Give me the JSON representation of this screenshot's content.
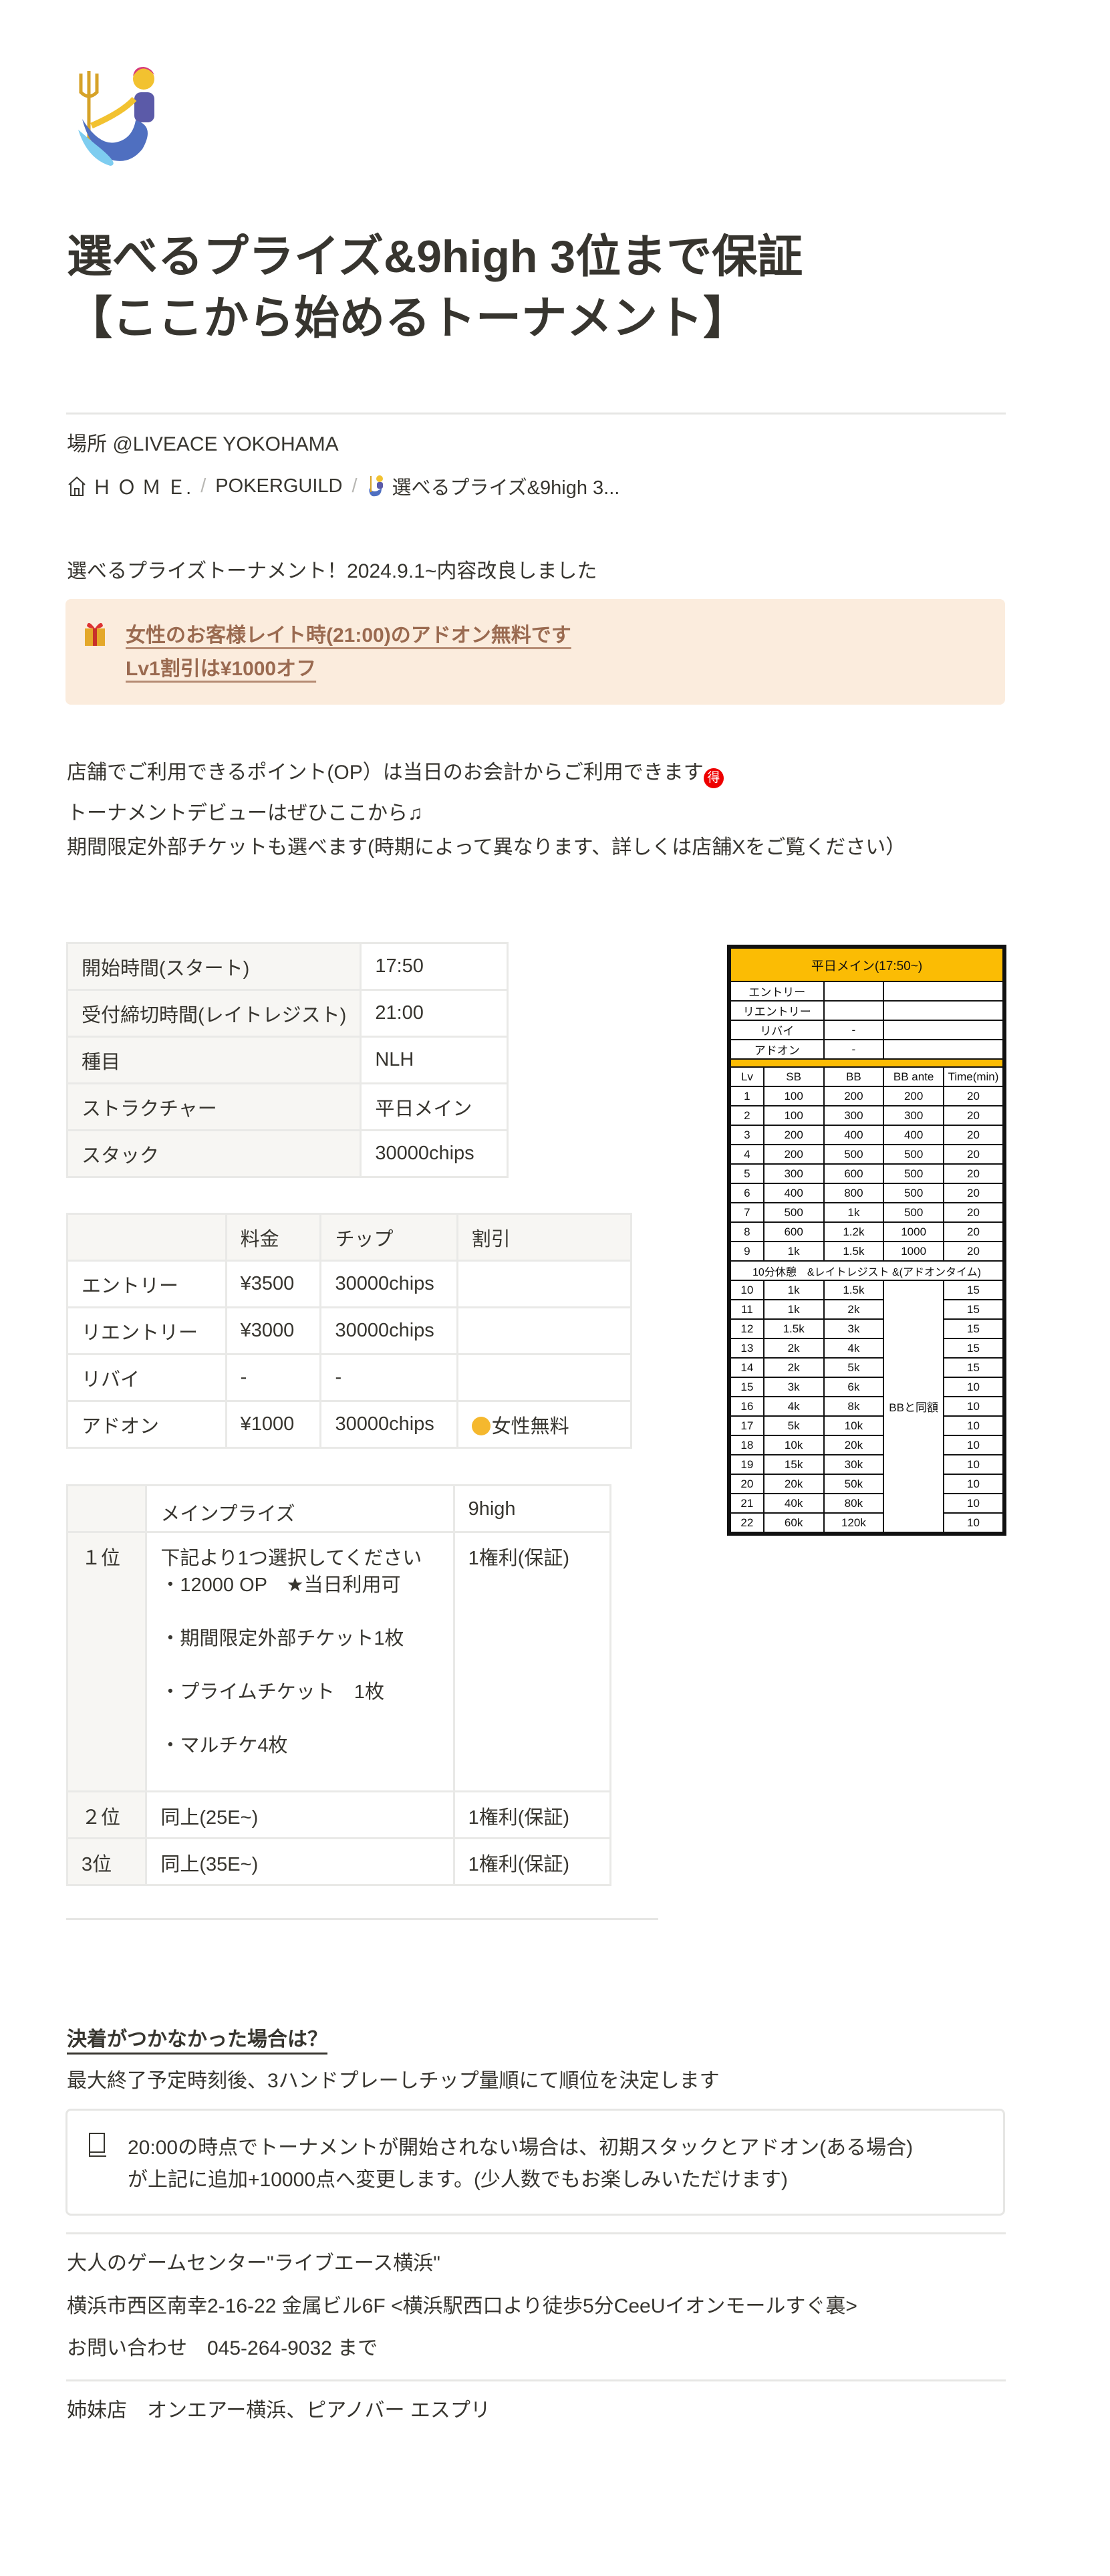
{
  "page": {
    "icon": "merperson-emoji",
    "title_line1": "選べるプライズ&9high 3位まで保証",
    "title_line2": "【ここから始めるトーナメント】",
    "location": "場所 @LIVEACE YOKOHAMA"
  },
  "breadcrumb": {
    "items": [
      {
        "icon": "home-icon",
        "label": "Ｈ Ｏ Ｍ Ｅ."
      },
      {
        "label": "POKERGUILD"
      },
      {
        "icon": "merperson-emoji",
        "label": "選べるプライズ&9high 3..."
      }
    ],
    "separator": "/"
  },
  "intro": "選べるプライズトーナメント！2024.9.1~内容改良しました",
  "callout_orange": {
    "icon": "gift-emoji",
    "line1": "女性のお客様レイト時(21:00)のアドオン無料です",
    "line2": "Lv1割引は¥1000オフ"
  },
  "notes": {
    "points": "店舗でご利用できるポイント(OP）は当日のお会計からご利用できます",
    "points_emoji": "得",
    "debut": "トーナメントデビューはぜひここから",
    "debut_emoji": "music-note-emoji",
    "tickets": "期間限定外部チケットも選べます(時期によって異なります、詳しくは店舗Xをご覧ください）"
  },
  "info_table": [
    [
      "開始時間(スタート)",
      "17:50"
    ],
    [
      "受付締切時間(レイトレジスト)",
      "21:00"
    ],
    [
      "種目",
      "NLH"
    ],
    [
      "ストラクチャー",
      "平日メイン"
    ],
    [
      "スタック",
      "30000chips"
    ]
  ],
  "fee_table": {
    "headers": [
      "",
      "料金",
      "チップ",
      "割引"
    ],
    "rows": [
      [
        "エントリー",
        "¥3500",
        "30000chips",
        ""
      ],
      [
        "リエントリー",
        "¥3000",
        "30000chips",
        ""
      ],
      [
        "リバイ",
        "-",
        "-",
        ""
      ],
      [
        "アドオン",
        "¥1000",
        "30000chips",
        "女性無料"
      ]
    ],
    "discount_emoji": "woman-emoji"
  },
  "prize_table": {
    "headers": [
      "",
      "メインプライズ",
      "9high"
    ],
    "rows": [
      [
        "１位",
        "下記より1つ選択してください\n・12000 OP　★当日利用可\n\n・期間限定外部チケット1枚\n\n・プライムチケット　1枚\n\n・マルチケ4枚",
        "1権利(保証)"
      ],
      [
        "２位",
        "同上(25E~)",
        "1権利(保証)"
      ],
      [
        "3位",
        "同上(35E~)",
        "1権利(保証)"
      ]
    ]
  },
  "structure": {
    "title": "平日メイン(17:50~)",
    "accent": "#fbbc04",
    "fees": [
      [
        "エントリー",
        "",
        ""
      ],
      [
        "リエントリー",
        "",
        ""
      ],
      [
        "リバイ",
        "-",
        ""
      ],
      [
        "アドオン",
        "-",
        ""
      ]
    ],
    "headers": [
      "Lv",
      "SB",
      "BB",
      "BB ante",
      "Time(min)"
    ],
    "levels_a": [
      [
        "1",
        "100",
        "200",
        "200",
        "20"
      ],
      [
        "2",
        "100",
        "300",
        "300",
        "20"
      ],
      [
        "3",
        "200",
        "400",
        "400",
        "20"
      ],
      [
        "4",
        "200",
        "500",
        "500",
        "20"
      ],
      [
        "5",
        "300",
        "600",
        "500",
        "20"
      ],
      [
        "6",
        "400",
        "800",
        "500",
        "20"
      ],
      [
        "7",
        "500",
        "1k",
        "500",
        "20"
      ],
      [
        "8",
        "600",
        "1.2k",
        "1000",
        "20"
      ],
      [
        "9",
        "1k",
        "1.5k",
        "1000",
        "20"
      ]
    ],
    "break_label": "10分休憩　&レイトレジスト &(アドオンタイム)",
    "levels_b": [
      [
        "10",
        "1k",
        "1.5k",
        "15"
      ],
      [
        "11",
        "1k",
        "2k",
        "15"
      ],
      [
        "12",
        "1.5k",
        "3k",
        "15"
      ],
      [
        "13",
        "2k",
        "4k",
        "15"
      ],
      [
        "14",
        "2k",
        "5k",
        "15"
      ],
      [
        "15",
        "3k",
        "6k",
        "10"
      ],
      [
        "16",
        "4k",
        "8k",
        "10"
      ],
      [
        "17",
        "5k",
        "10k",
        "10"
      ],
      [
        "18",
        "10k",
        "20k",
        "10"
      ],
      [
        "19",
        "15k",
        "30k",
        "10"
      ],
      [
        "20",
        "20k",
        "50k",
        "10"
      ],
      [
        "21",
        "40k",
        "80k",
        "10"
      ],
      [
        "22",
        "60k",
        "120k",
        "10"
      ]
    ],
    "ante_merged": "BBと同額"
  },
  "tiebreak": {
    "heading": "決着がつかなかった場合は？",
    "text": "最大終了予定時刻後、3ハンドプレーしチップ量順にて順位を決定します",
    "callout_icon": "book-icon",
    "callout_line1": "20:00の時点でトーナメントが開始されない場合は、初期スタックとアドオン(ある場合)",
    "callout_line2": "が上記に追加+10000点へ変更します。(少人数でもお楽しみいただけます)"
  },
  "footer": {
    "store": "大人のゲームセンター\"ライブエース横浜\"",
    "address": "横浜市西区南幸2-16-22 金属ビル6F  <横浜駅西口より徒歩5分CeeUイオンモールすぐ裏>",
    "contact": "お問い合わせ　045-264-9032 まで",
    "sister": "姉妹店　オンエアー横浜、ピアノバー エスプリ"
  }
}
